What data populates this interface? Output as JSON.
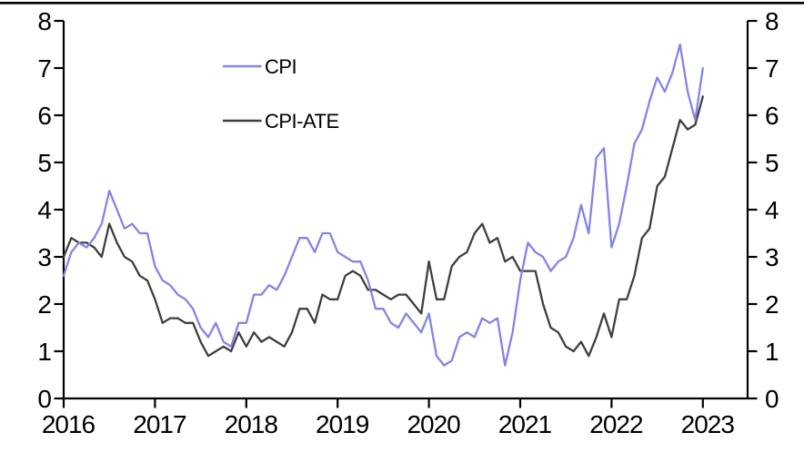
{
  "chart_data": {
    "type": "line",
    "frequency": "monthly",
    "x_start": "2016-01",
    "x_end": "2023-01",
    "x_tick_labels": [
      "2016",
      "2017",
      "2018",
      "2019",
      "2020",
      "2021",
      "2022",
      "2023"
    ],
    "y_ticks": [
      0,
      1,
      2,
      3,
      4,
      5,
      6,
      7,
      8
    ],
    "ylim": [
      0,
      8
    ],
    "xlabel": "",
    "ylabel": "",
    "y_axis_sides": "both",
    "grid": false,
    "legend_position": "inside-top-left",
    "series": [
      {
        "name": "CPI",
        "color": "#8583E8",
        "values": [
          2.6,
          3.1,
          3.3,
          3.2,
          3.4,
          3.7,
          4.4,
          4.0,
          3.6,
          3.7,
          3.5,
          3.5,
          2.8,
          2.5,
          2.4,
          2.2,
          2.1,
          1.9,
          1.5,
          1.3,
          1.6,
          1.2,
          1.1,
          1.6,
          1.6,
          2.2,
          2.2,
          2.4,
          2.3,
          2.6,
          3.0,
          3.4,
          3.4,
          3.1,
          3.5,
          3.5,
          3.1,
          3.0,
          2.9,
          2.9,
          2.5,
          1.9,
          1.9,
          1.6,
          1.5,
          1.8,
          1.6,
          1.4,
          1.8,
          0.9,
          0.7,
          0.8,
          1.3,
          1.4,
          1.3,
          1.7,
          1.6,
          1.7,
          0.7,
          1.4,
          2.5,
          3.3,
          3.1,
          3.0,
          2.7,
          2.9,
          3.0,
          3.4,
          4.1,
          3.5,
          5.1,
          5.3,
          3.2,
          3.7,
          4.5,
          5.4,
          5.7,
          6.3,
          6.8,
          6.5,
          6.9,
          7.5,
          6.5,
          5.9,
          7.0
        ]
      },
      {
        "name": "CPI-ATE",
        "color": "#3F3F3F",
        "values": [
          3.0,
          3.4,
          3.3,
          3.3,
          3.2,
          3.0,
          3.7,
          3.3,
          3.0,
          2.9,
          2.6,
          2.5,
          2.1,
          1.6,
          1.7,
          1.7,
          1.6,
          1.6,
          1.2,
          0.9,
          1.0,
          1.1,
          1.0,
          1.4,
          1.1,
          1.4,
          1.2,
          1.3,
          1.2,
          1.1,
          1.4,
          1.9,
          1.9,
          1.6,
          2.2,
          2.1,
          2.1,
          2.6,
          2.7,
          2.6,
          2.3,
          2.3,
          2.2,
          2.1,
          2.2,
          2.2,
          2.0,
          1.8,
          2.9,
          2.1,
          2.1,
          2.8,
          3.0,
          3.1,
          3.5,
          3.7,
          3.3,
          3.4,
          2.9,
          3.0,
          2.7,
          2.7,
          2.7,
          2.0,
          1.5,
          1.4,
          1.1,
          1.0,
          1.2,
          0.9,
          1.3,
          1.8,
          1.3,
          2.1,
          2.1,
          2.6,
          3.4,
          3.6,
          4.5,
          4.7,
          5.3,
          5.9,
          5.7,
          5.8,
          6.4
        ]
      }
    ]
  },
  "colors": {
    "axis": "#000000",
    "background": "#FFFFFF",
    "top_rule": "#000000",
    "cpi_line": "#8583E8",
    "cpi_ate_line": "#3F3F3F"
  }
}
